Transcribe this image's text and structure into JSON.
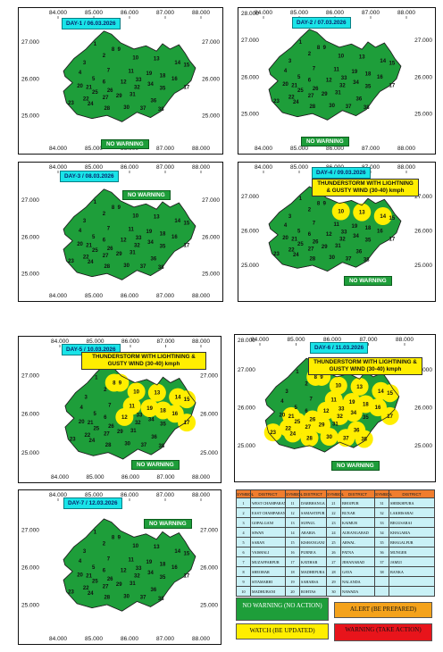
{
  "colors": {
    "no_warning": "#1e9e3a",
    "watch": "#ffee00",
    "alert": "#f4a21b",
    "warning": "#e8141b",
    "title_bg": "#19e4e8"
  },
  "axis_labels": {
    "lon": [
      "84.000",
      "85.000",
      "86.000",
      "87.000",
      "88.000"
    ],
    "lat": [
      "27.000",
      "26.000",
      "25.000"
    ],
    "lat_extra": "28.000"
  },
  "panels": [
    {
      "title": "DAY-1 / 06.03.2026",
      "status": "NO WARNING",
      "warning_text": "",
      "yellow_districts": []
    },
    {
      "title": "DAY-2 / 07.03.2026",
      "status": "NO WARNING",
      "warning_text": "",
      "yellow_districts": []
    },
    {
      "title": "DAY-3 / 08.03.2026",
      "status": "NO WARNING",
      "warning_text": "",
      "yellow_districts": []
    },
    {
      "title": "DAY-4 / 09.03.2026",
      "status": "NO WARNING",
      "warning_text": "THUNDERSTORM WITH LIGHTNING & GUSTY WIND (30-40) kmph",
      "yellow_districts": [
        10,
        13,
        14
      ]
    },
    {
      "title": "DAY-5 / 10.03.2026",
      "status": "NO WARNING",
      "warning_text": "THUNDERSTORM WITH LIGHTINING & GUSTY WIND (30-40) kmph",
      "yellow_districts": [
        8,
        9,
        10,
        11,
        12,
        13,
        14,
        15,
        16,
        17,
        18,
        19
      ]
    },
    {
      "title": "DAY-6 / 11.03.2026",
      "status": "NO WARNING",
      "warning_text": "THUNDERSTORM WITH LIGHTINING & GUSTY WIND (30-40) kmph",
      "yellow_districts": [
        8,
        9,
        10,
        11,
        12,
        13,
        14,
        15,
        16,
        17,
        18,
        19,
        21,
        22,
        23,
        24,
        25,
        26,
        27,
        28,
        29,
        30,
        32,
        33,
        34,
        36,
        37,
        38
      ]
    },
    {
      "title": "DAY-7 / 12.03.2026",
      "status": "NO WARNING",
      "warning_text": "",
      "yellow_districts": []
    }
  ],
  "district_table": {
    "headers": [
      "SYMBOL",
      "DISTRICT",
      "SYMBOL",
      "DISTRICT",
      "SYMBOL",
      "DISTRICT",
      "SYMBOL",
      "DISTRICT"
    ],
    "rows": [
      [
        "1",
        "WEST CHAMPARAN",
        "11",
        "DARBHANGA",
        "21",
        "BHOJPUR",
        "31",
        "SHEIKHPURA"
      ],
      [
        "2",
        "EAST CHAMPARAN",
        "12",
        "SAMASTIPUR",
        "22",
        "BUXAR",
        "32",
        "LAKHISARAI"
      ],
      [
        "3",
        "GOPALGANJ",
        "13",
        "SUPAUL",
        "23",
        "KAIMUR",
        "33",
        "BEGUSARAI"
      ],
      [
        "4",
        "SIWAN",
        "14",
        "ARARIA",
        "24",
        "AURANGABAD",
        "34",
        "KHAGARIA"
      ],
      [
        "5",
        "SARAN",
        "15",
        "KISHANGANJ",
        "25",
        "ARWAL",
        "35",
        "BHAGALPUR"
      ],
      [
        "6",
        "VAISHALI",
        "16",
        "PURNEA",
        "26",
        "PATNA",
        "36",
        "MUNGER"
      ],
      [
        "7",
        "MUZAFFARPUR",
        "17",
        "KATIHAR",
        "27",
        "JEHANABAD",
        "37",
        "JAMUI"
      ],
      [
        "8",
        "SHEOHAR",
        "18",
        "MADHEPURA",
        "28",
        "GAYA",
        "38",
        "BANKA"
      ],
      [
        "9",
        "SITAMARHI",
        "19",
        "SAHARSA",
        "29",
        "NALANDA",
        "",
        ""
      ],
      [
        "10",
        "MADHUBANI",
        "20",
        "ROHTAS",
        "30",
        "NAWADA",
        "",
        ""
      ]
    ]
  },
  "legend": {
    "no_warning": "NO WARNING (NO ACTION)",
    "alert": "ALERT (BE PREPARED)",
    "watch": "WATCH (BE UPDATED)",
    "warning": "WARNING (TAKE ACTION)"
  }
}
